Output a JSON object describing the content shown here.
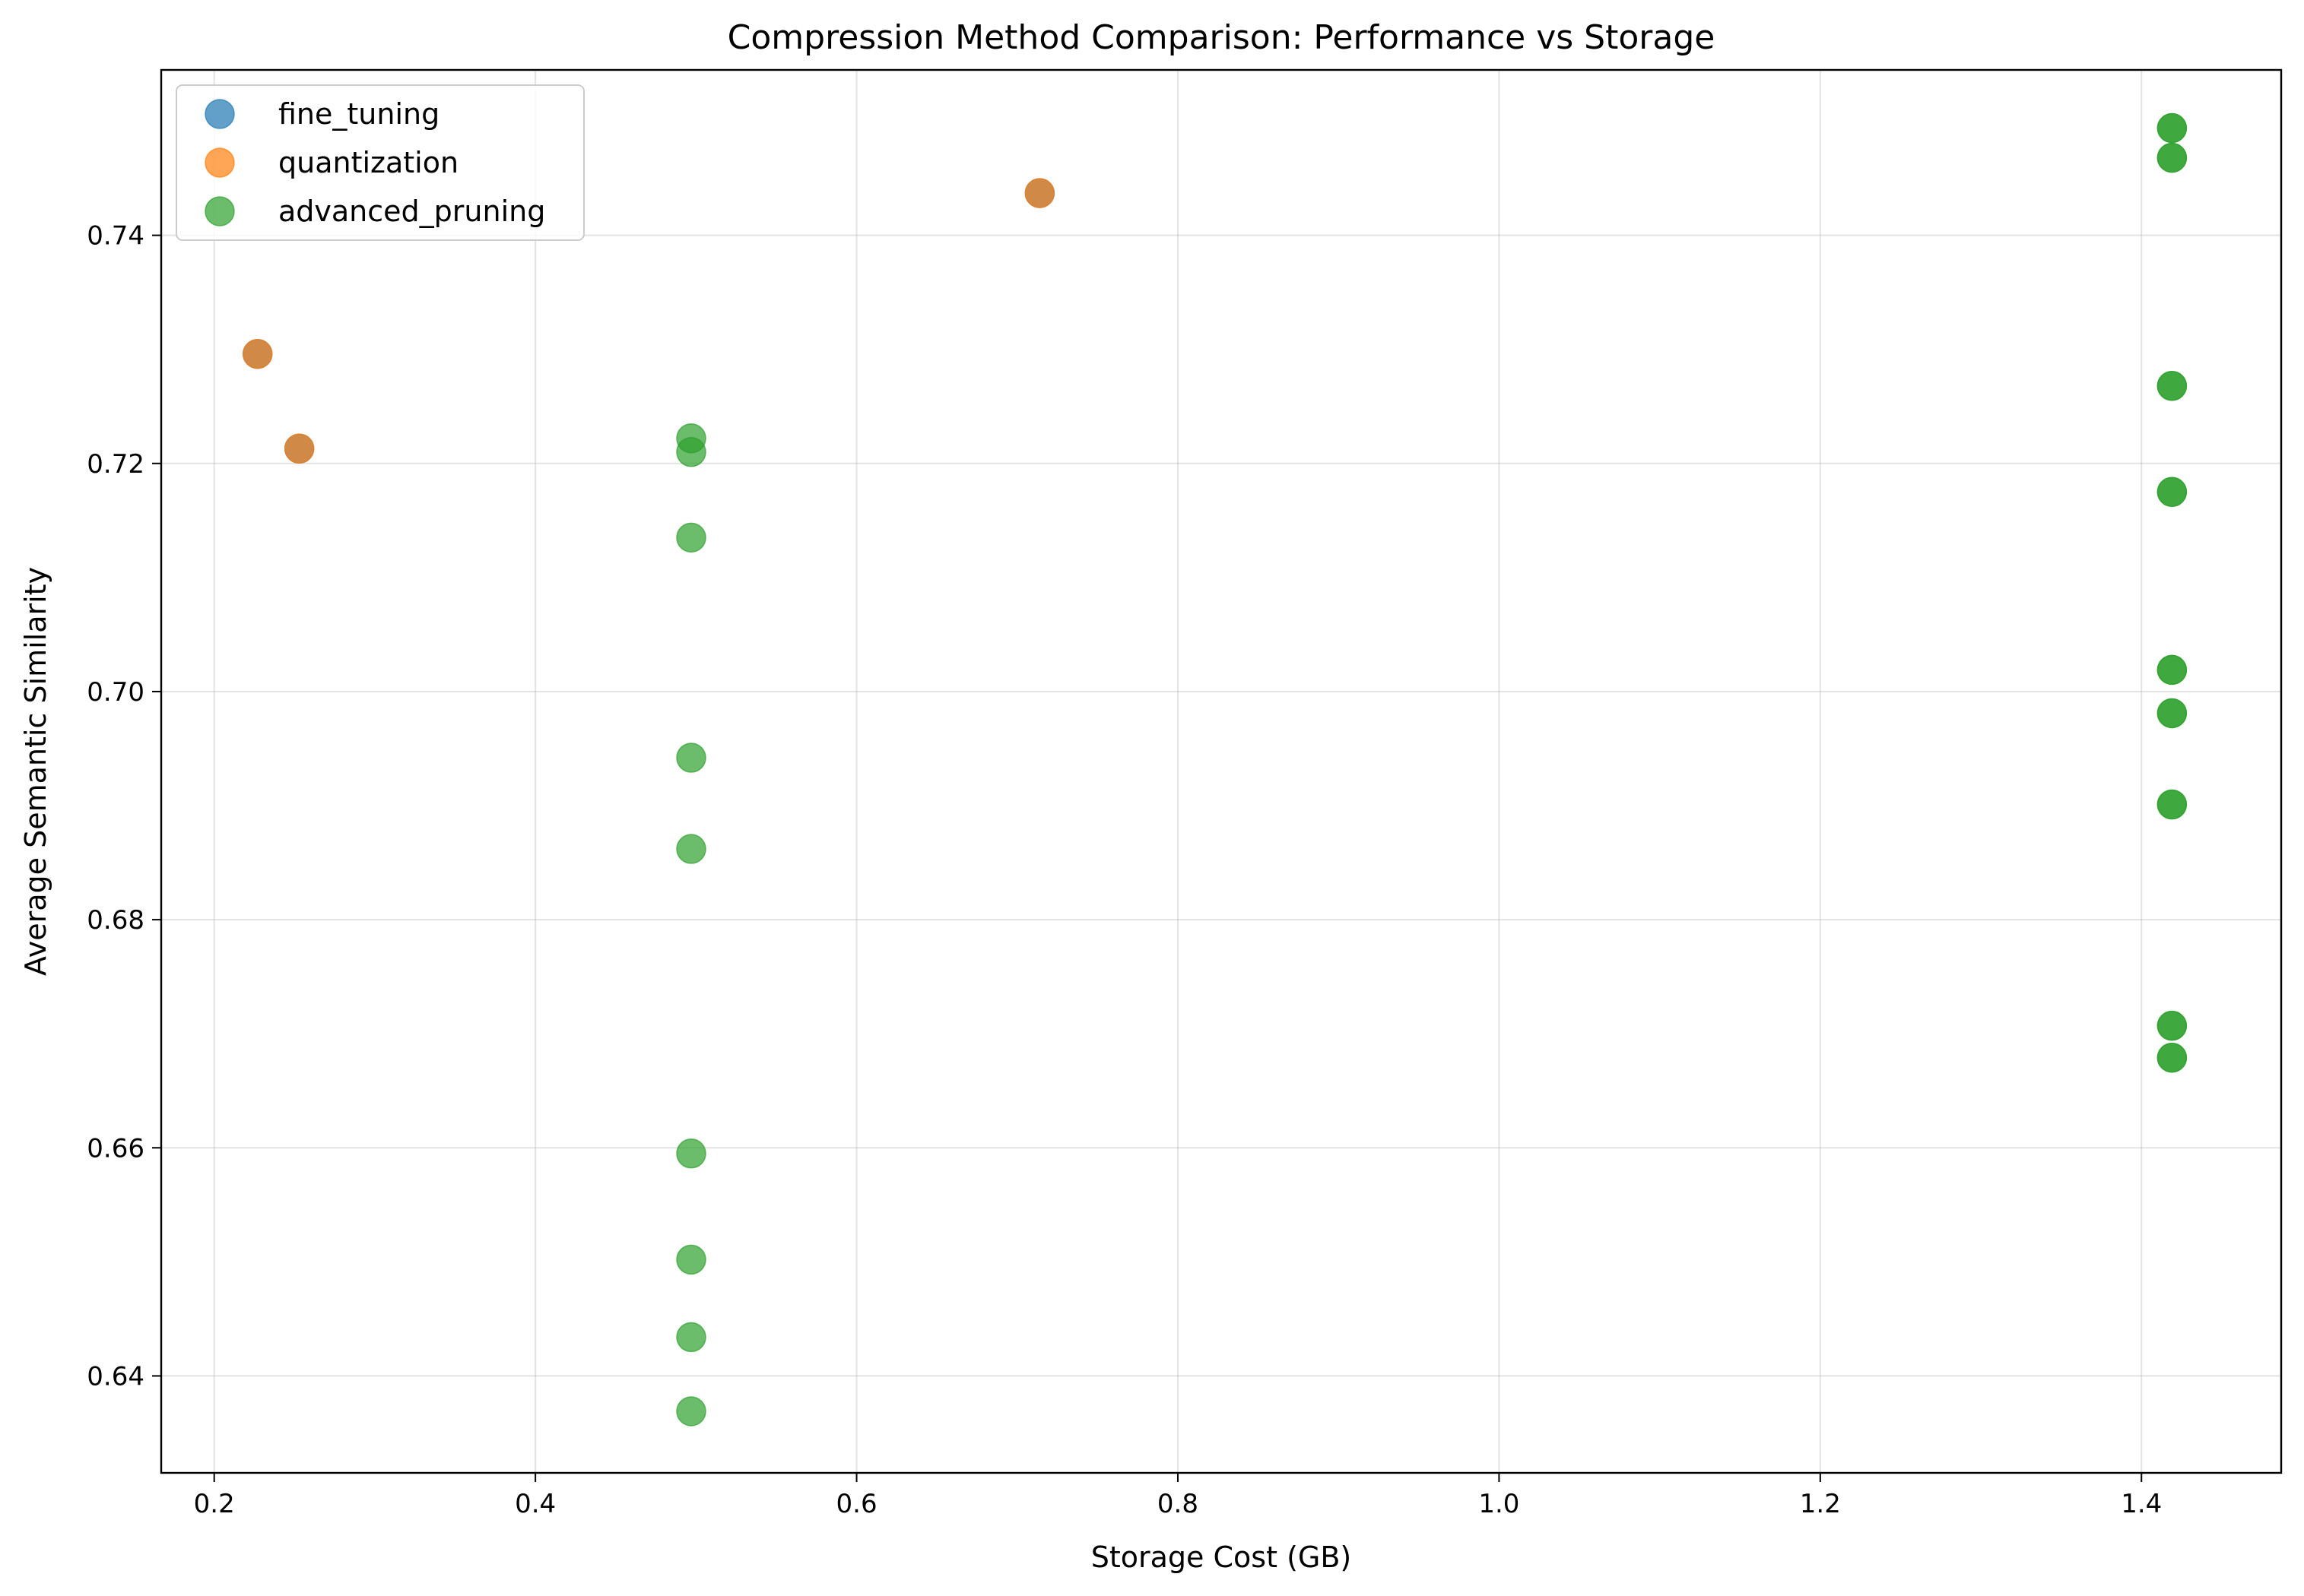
{
  "chart_data": {
    "type": "scatter",
    "title": "Compression Method Comparison: Performance vs Storage",
    "xlabel": "Storage Cost (GB)",
    "ylabel": "Average Semantic Similarity",
    "xlim": [
      0.167,
      1.487
    ],
    "ylim": [
      0.6315,
      0.7545
    ],
    "xticks": [
      0.2,
      0.4,
      0.6,
      0.8,
      1.0,
      1.2,
      1.4
    ],
    "xtick_labels": [
      "0.2",
      "0.4",
      "0.6",
      "0.8",
      "1.0",
      "1.2",
      "1.4"
    ],
    "yticks": [
      0.64,
      0.66,
      0.68,
      0.7,
      0.72,
      0.74
    ],
    "ytick_labels": [
      "0.64",
      "0.66",
      "0.68",
      "0.70",
      "0.72",
      "0.74"
    ],
    "grid": true,
    "legend_position": "top-left",
    "series": [
      {
        "name": "fine_tuning",
        "color": "#1f77b4",
        "points": [
          {
            "x": 0.227,
            "y": 0.7296
          },
          {
            "x": 0.253,
            "y": 0.7213
          },
          {
            "x": 0.714,
            "y": 0.7437
          }
        ]
      },
      {
        "name": "quantization",
        "color": "#ff7f0e",
        "points": [
          {
            "x": 0.227,
            "y": 0.7296
          },
          {
            "x": 0.253,
            "y": 0.7213
          },
          {
            "x": 0.714,
            "y": 0.7437
          }
        ]
      },
      {
        "name": "advanced_pruning",
        "color": "#2ca02c",
        "points": [
          {
            "x": 0.497,
            "y": 0.7222
          },
          {
            "x": 0.497,
            "y": 0.721
          },
          {
            "x": 0.497,
            "y": 0.7135
          },
          {
            "x": 0.497,
            "y": 0.6942
          },
          {
            "x": 0.497,
            "y": 0.6862
          },
          {
            "x": 0.497,
            "y": 0.6595
          },
          {
            "x": 0.497,
            "y": 0.6502
          },
          {
            "x": 0.497,
            "y": 0.6434
          },
          {
            "x": 0.497,
            "y": 0.6369
          },
          {
            "x": 1.419,
            "y": 0.7494
          },
          {
            "x": 1.419,
            "y": 0.7468
          },
          {
            "x": 1.419,
            "y": 0.7268
          },
          {
            "x": 1.419,
            "y": 0.7175
          },
          {
            "x": 1.419,
            "y": 0.7019
          },
          {
            "x": 1.419,
            "y": 0.6981
          },
          {
            "x": 1.419,
            "y": 0.6901
          },
          {
            "x": 1.419,
            "y": 0.6707
          },
          {
            "x": 1.419,
            "y": 0.6679
          },
          {
            "x": 1.419,
            "y": 0.7494
          },
          {
            "x": 1.419,
            "y": 0.7468
          },
          {
            "x": 1.419,
            "y": 0.7268
          },
          {
            "x": 1.419,
            "y": 0.7175
          },
          {
            "x": 1.419,
            "y": 0.7019
          },
          {
            "x": 1.419,
            "y": 0.6981
          },
          {
            "x": 1.419,
            "y": 0.6901
          },
          {
            "x": 1.419,
            "y": 0.6707
          },
          {
            "x": 1.419,
            "y": 0.6679
          }
        ]
      }
    ]
  }
}
